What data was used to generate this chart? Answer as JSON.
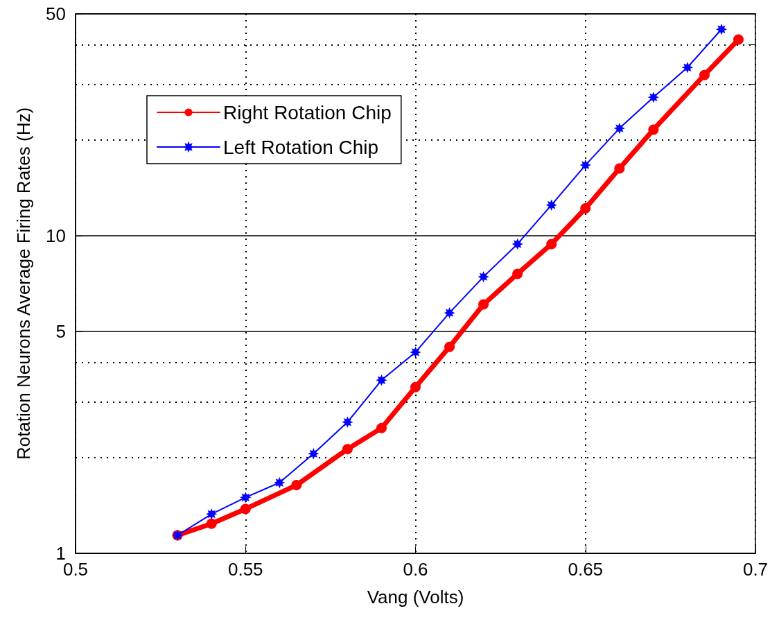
{
  "chart_data": {
    "type": "line",
    "xlabel": "Vang (Volts)",
    "ylabel": "Rotation Neurons Average Firing Rates (Hz)",
    "xlim": [
      0.5,
      0.7
    ],
    "xticks": [
      0.5,
      0.55,
      0.6,
      0.65,
      0.7
    ],
    "ylim": [
      1,
      50
    ],
    "yticks": [
      1,
      {
        "value": 2,
        "label": null
      },
      {
        "value": 3,
        "label": null
      },
      {
        "value": 4,
        "label": null
      },
      5,
      10,
      {
        "value": 20,
        "label": null
      },
      {
        "value": 30,
        "label": null
      },
      {
        "value": 40,
        "label": null
      },
      50
    ],
    "log": "y",
    "grid": true,
    "legend": "top left",
    "line_style": "solid",
    "series": [
      {
        "name": "Right Rotation Chip",
        "color": "#ff0000",
        "marker": "circle",
        "x": [
          0.53,
          0.54,
          0.55,
          0.565,
          0.58,
          0.59,
          0.6,
          0.61,
          0.62,
          0.63,
          0.64,
          0.65,
          0.66,
          0.67,
          0.685,
          0.695
        ],
        "values": [
          1.14,
          1.24,
          1.38,
          1.64,
          2.13,
          2.48,
          3.34,
          4.47,
          6.08,
          7.59,
          9.42,
          12.2,
          16.3,
          21.6,
          32.1,
          41.5
        ]
      },
      {
        "name": "Left Rotation Chip",
        "color": "#0000ff",
        "marker": "star",
        "x": [
          0.53,
          0.54,
          0.55,
          0.56,
          0.57,
          0.58,
          0.59,
          0.6,
          0.61,
          0.62,
          0.63,
          0.64,
          0.65,
          0.66,
          0.67,
          0.68,
          0.69
        ],
        "values": [
          1.14,
          1.33,
          1.5,
          1.67,
          2.06,
          2.59,
          3.51,
          4.3,
          5.72,
          7.43,
          9.42,
          12.5,
          16.7,
          21.8,
          27.3,
          33.9,
          44.7
        ]
      }
    ]
  }
}
